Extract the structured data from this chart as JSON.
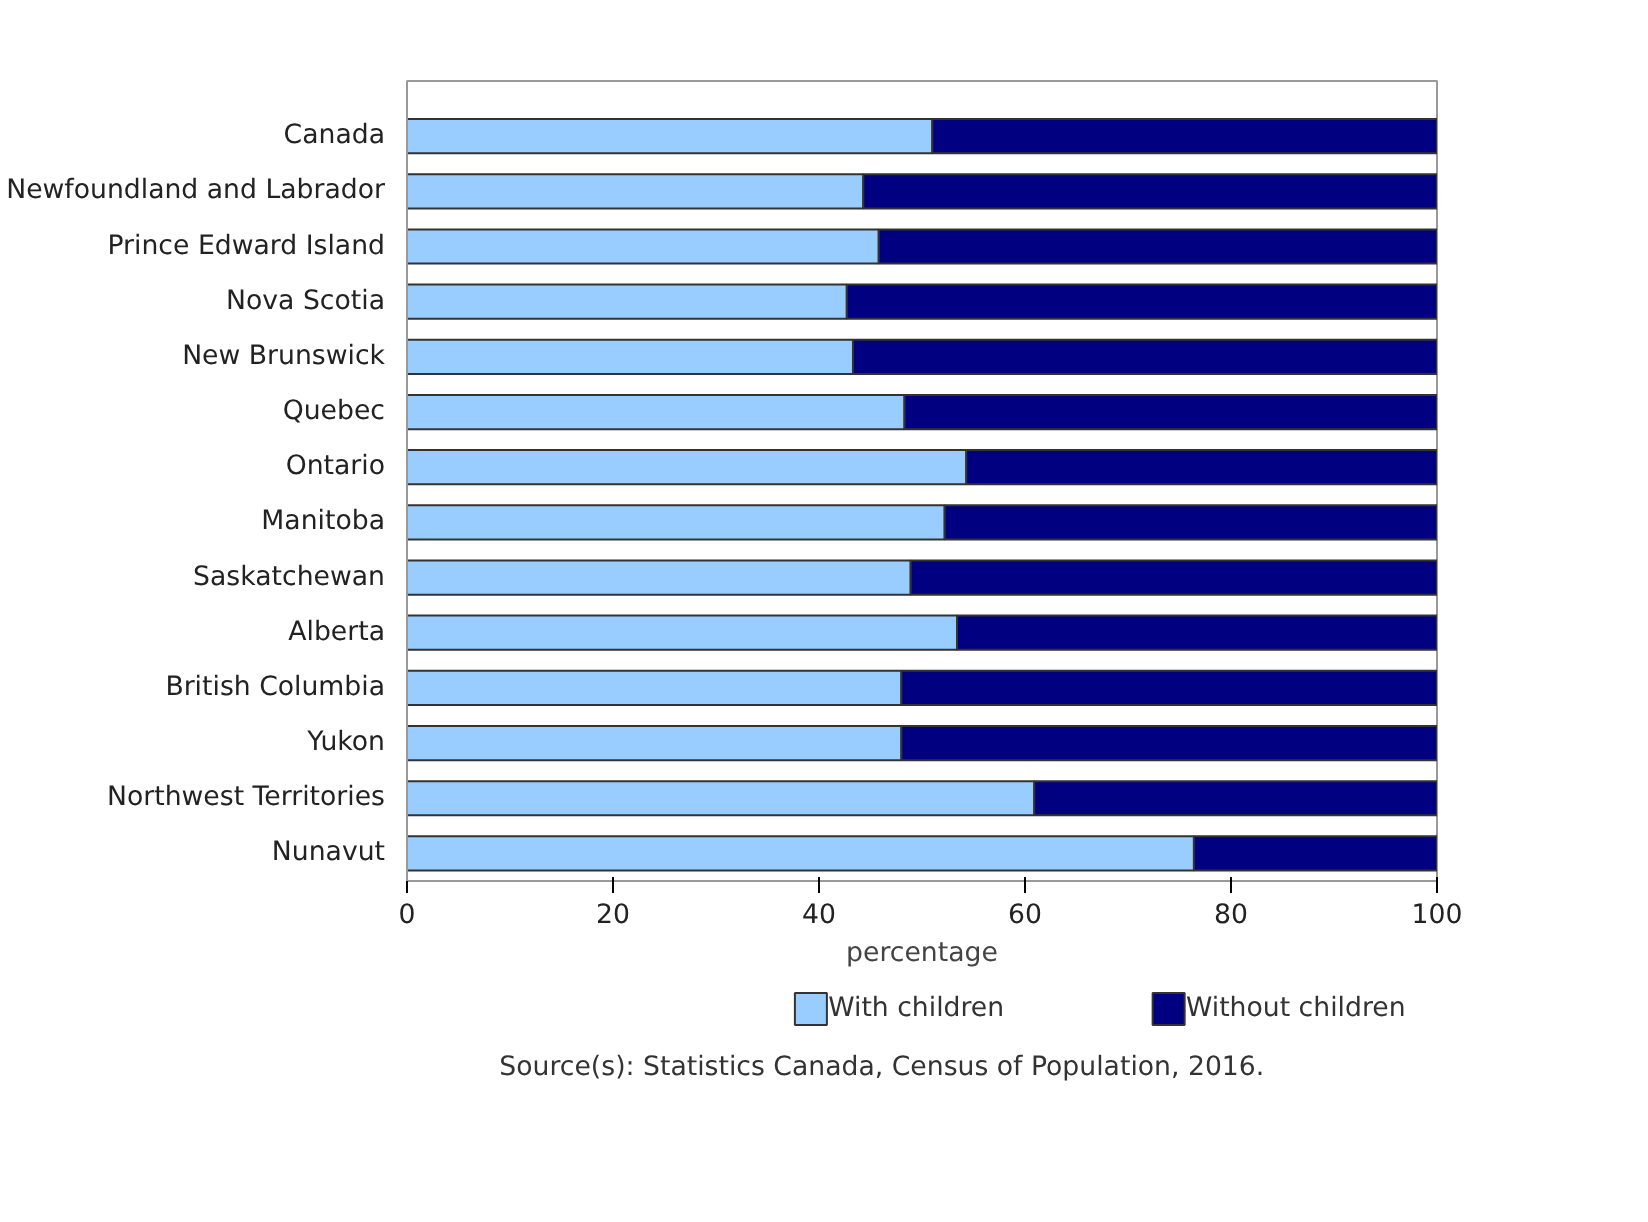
{
  "chart_data": {
    "type": "bar",
    "orientation": "horizontal",
    "stacked": true,
    "categories": [
      "Canada",
      "Newfoundland and Labrador",
      "Prince Edward Island",
      "Nova Scotia",
      "New Brunswick",
      "Quebec",
      "Ontario",
      "Manitoba",
      "Saskatchewan",
      "Alberta",
      "British Columbia",
      "Yukon",
      "Northwest Territories",
      "Nunavut"
    ],
    "series": [
      {
        "name": "With children",
        "color": "#99ccff",
        "values": [
          51.0,
          44.3,
          45.8,
          42.7,
          43.3,
          48.3,
          54.3,
          52.2,
          48.9,
          53.4,
          48.0,
          48.0,
          60.9,
          76.4
        ]
      },
      {
        "name": "Without children",
        "color": "#000080",
        "values": [
          49.0,
          55.7,
          54.2,
          57.3,
          56.7,
          51.7,
          45.7,
          47.8,
          51.1,
          46.6,
          52.0,
          52.0,
          39.1,
          23.6
        ]
      }
    ],
    "xlim": [
      0,
      100
    ],
    "xticks": [
      0,
      20,
      40,
      60,
      80,
      100
    ],
    "xlabel": "percentage",
    "grid": false,
    "legend": "bottom",
    "annotations": [
      "Source(s):  Statistics Canada, Census of Population, 2016."
    ]
  }
}
